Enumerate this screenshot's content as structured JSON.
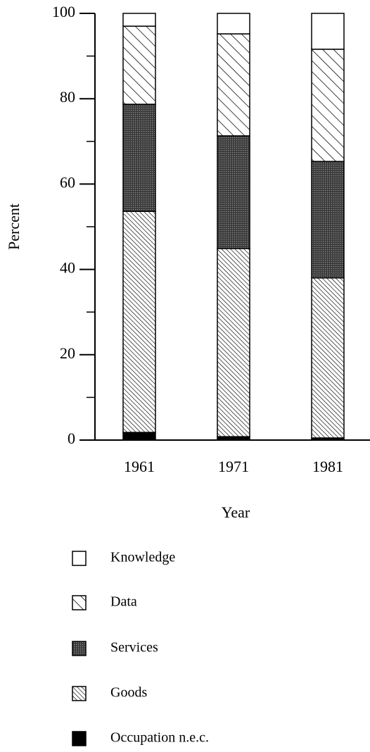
{
  "chart_data": {
    "type": "stacked_bar",
    "x_label": "Year",
    "y_label": "Percent",
    "categories": [
      "1961",
      "1971",
      "1981"
    ],
    "series": [
      {
        "name": "Knowledge",
        "color": "#ffffff",
        "pattern": "none",
        "values": [
          3.0,
          4.8,
          8.4
        ]
      },
      {
        "name": "Data",
        "color": "#ffffff",
        "pattern": "wide-hatch",
        "values": [
          18.3,
          23.9,
          26.3
        ]
      },
      {
        "name": "Services",
        "color": "#4a4a4a",
        "pattern": "stipple",
        "values": [
          25.1,
          26.4,
          27.3
        ]
      },
      {
        "name": "Goods",
        "color": "#ffffff",
        "pattern": "dense-hatch",
        "values": [
          51.8,
          44.1,
          37.5
        ]
      },
      {
        "name": "Occupation n.e.c.",
        "color": "#000000",
        "pattern": "solid",
        "values": [
          1.8,
          0.8,
          0.5
        ]
      }
    ],
    "ylim": [
      0,
      100
    ],
    "yticks": [
      0,
      20,
      40,
      60,
      80,
      100
    ],
    "minor_yticks": [
      10,
      30,
      50,
      70,
      90
    ],
    "legend": "bottom"
  }
}
